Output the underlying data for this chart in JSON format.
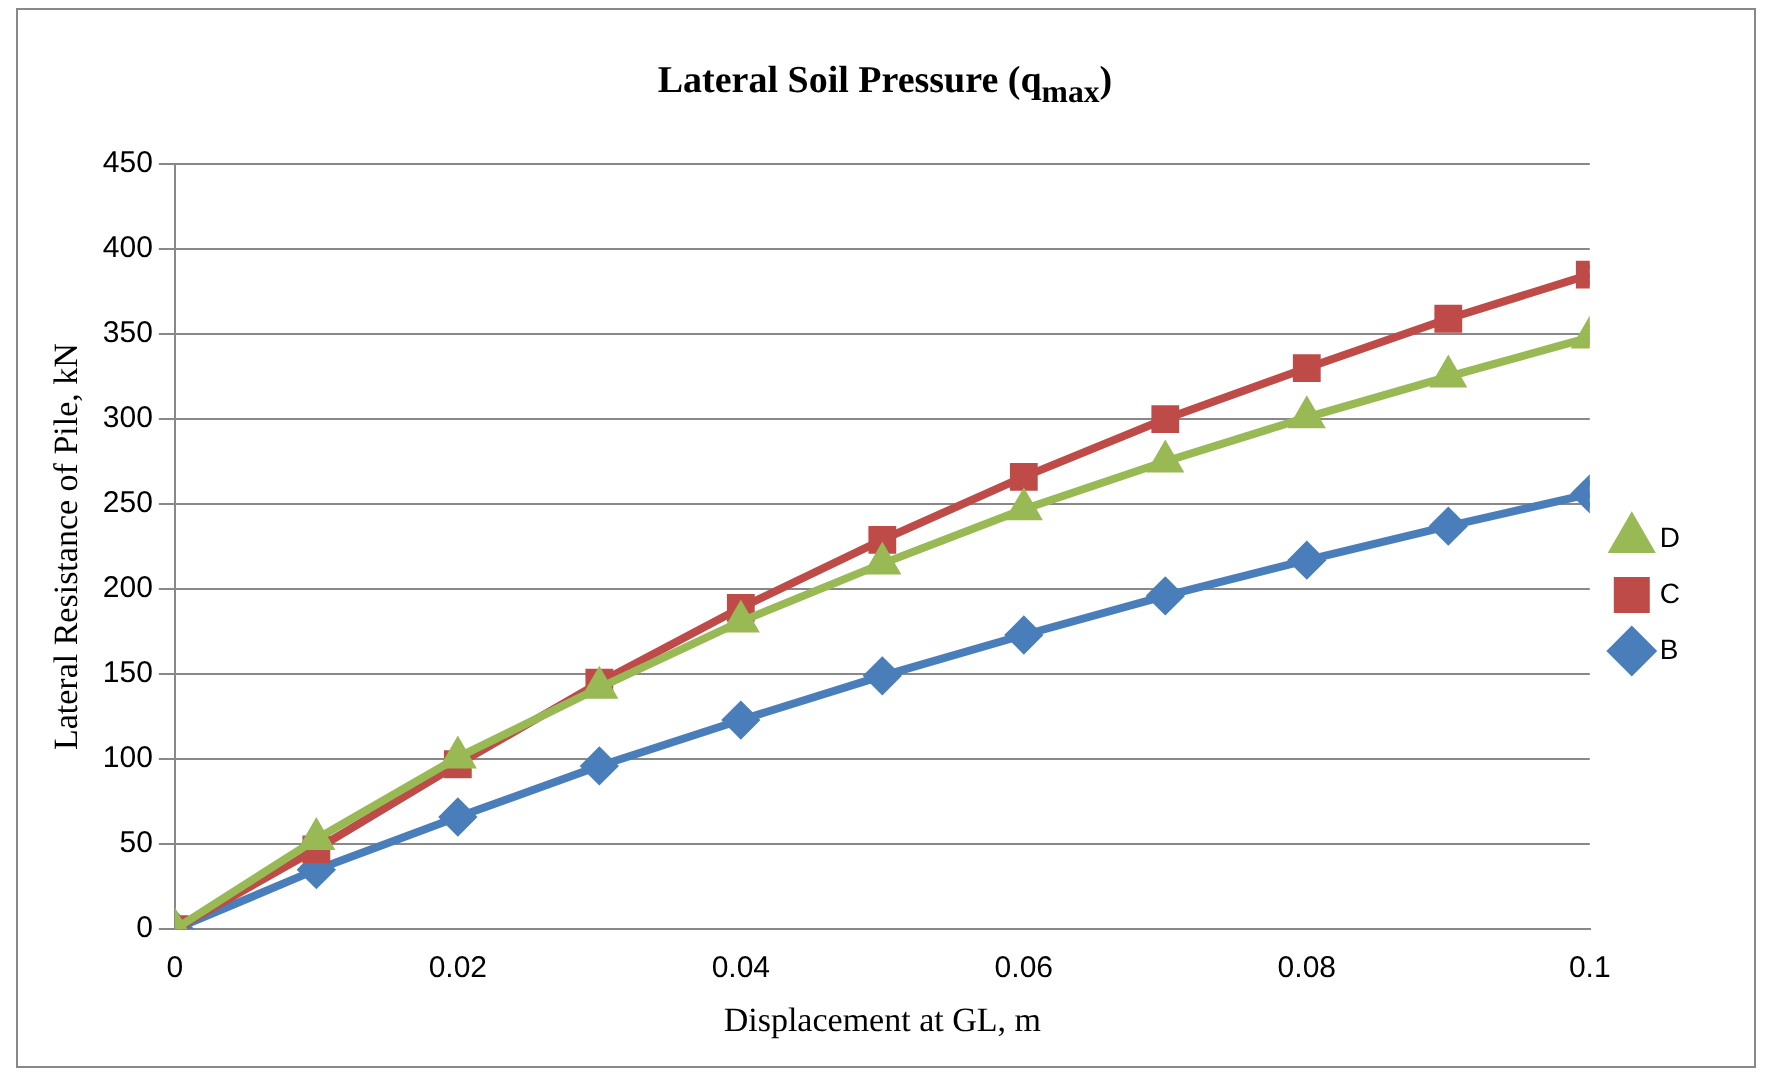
{
  "chart_data": {
    "type": "line",
    "title": "Lateral Soil Pressure (q$_{max}$)",
    "xlabel": "Displacement at GL, m",
    "ylabel": "Lateral Resistance of Pile, kN",
    "x": [
      0,
      0.01,
      0.02,
      0.03,
      0.04,
      0.05,
      0.06,
      0.07,
      0.08,
      0.09,
      0.1
    ],
    "series": [
      {
        "name": "B",
        "color": "#4a7ebb",
        "marker": "diamond",
        "values": [
          0,
          35,
          66,
          96,
          123,
          149,
          173,
          196,
          217,
          237,
          256
        ]
      },
      {
        "name": "C",
        "color": "#be4b48",
        "marker": "square",
        "values": [
          0,
          47,
          97,
          145,
          189,
          229,
          266,
          300,
          330,
          359,
          385
        ]
      },
      {
        "name": "D",
        "color": "#98b954",
        "marker": "triangle",
        "values": [
          0,
          53,
          101,
          142,
          181,
          215,
          247,
          275,
          301,
          325,
          348
        ]
      }
    ],
    "xlim": [
      0,
      0.1
    ],
    "xticks": [
      0,
      0.02,
      0.04,
      0.06,
      0.08,
      0.1
    ],
    "ylim": [
      0,
      450
    ],
    "yticks": [
      0,
      50,
      100,
      150,
      200,
      250,
      300,
      350,
      400,
      450
    ],
    "grid": "y",
    "legend": "right"
  }
}
